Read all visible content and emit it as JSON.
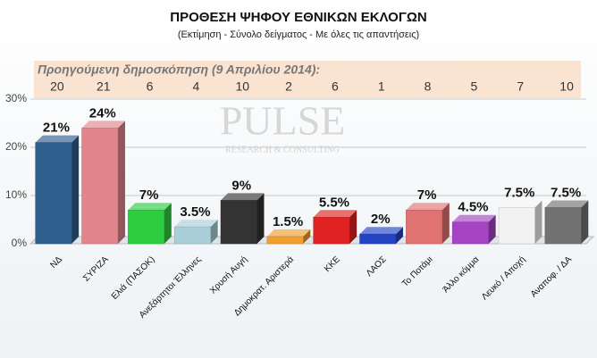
{
  "chart_data": {
    "type": "bar",
    "title": "ΠΡΟΘΕΣΗ ΨΗΦΟΥ ΕΘΝΙΚΩΝ ΕΚΛΟΓΩΝ",
    "subtitle": "(Εκτίμηση - Σύνολο δείγματος - Με όλες τις απαντήσεις)",
    "watermark": [
      "PULSE",
      "RESEARCH & CONSULTING"
    ],
    "categories": [
      "ΝΔ",
      "ΣΥΡΙΖΑ",
      "Ελιά (ΠΑΣΟΚ)",
      "Ανεξάρτητοι Έλληνες",
      "Χρυσή Αυγή",
      "Δημοκρατ. Αριστερά",
      "ΚΚΕ",
      "ΛΑΟΣ",
      "Το Ποτάμι",
      "Άλλο κόμμα",
      "Λευκό / Αποχή",
      "Αναποφ. / ΔΑ"
    ],
    "values": [
      21,
      24,
      7,
      3.5,
      9,
      1.5,
      5.5,
      2,
      7,
      4.5,
      7.5,
      7.5
    ],
    "value_labels": [
      "21%",
      "24%",
      "7%",
      "3.5%",
      "9%",
      "1.5%",
      "5.5%",
      "2%",
      "7%",
      "4.5%",
      "7.5%",
      "7.5%"
    ],
    "colors": [
      "#2f5f8f",
      "#e0858c",
      "#2ecc40",
      "#a9d0d9",
      "#333333",
      "#f0a030",
      "#e02222",
      "#2444c4",
      "#e07272",
      "#a444c4",
      "#f2f2f2",
      "#727272"
    ],
    "previous_poll": {
      "label": "Προηγούμενη δημοσκόπηση (9 Απριλίου 2014):",
      "values": [
        20,
        21,
        6,
        4,
        10,
        2,
        6,
        1,
        8,
        5,
        7,
        10
      ]
    },
    "ylim": [
      0,
      30
    ],
    "yticks": [
      {
        "value": 0,
        "label": "0%"
      },
      {
        "value": 10,
        "label": "10%"
      },
      {
        "value": 20,
        "label": "20%"
      },
      {
        "value": 30,
        "label": "30%"
      }
    ],
    "grid": true
  }
}
